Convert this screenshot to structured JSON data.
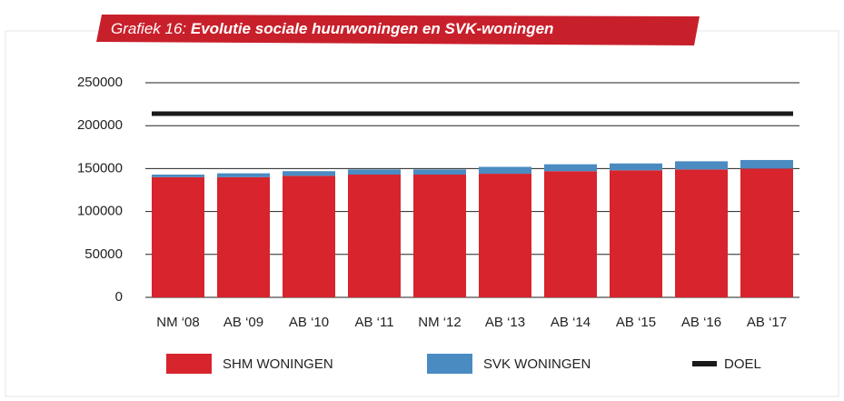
{
  "chart_data": {
    "type": "stacked-bar-line",
    "title_label": "Grafiek 16:",
    "title": "Evolutie sociale huurwoningen en SVK-woningen",
    "categories": [
      "NM ‘08",
      "AB ‘09",
      "AB ‘10",
      "AB ‘11",
      "NM ‘12",
      "AB ‘13",
      "AB ‘14",
      "AB ‘15",
      "AB ‘16",
      "AB ‘17"
    ],
    "series": [
      {
        "name": "SHM WONINGEN",
        "color": "#d7242d",
        "kind": "bar",
        "values": [
          140000,
          140000,
          141500,
          143000,
          143000,
          144000,
          147000,
          148000,
          149000,
          150000
        ]
      },
      {
        "name": "SVK WONINGEN",
        "color": "#4a8bc2",
        "kind": "bar",
        "values": [
          3000,
          4500,
          5500,
          6000,
          6000,
          8000,
          8000,
          8000,
          9500,
          10000
        ]
      },
      {
        "name": "DOEL",
        "color": "#1a1a1a",
        "kind": "line",
        "values": [
          214000,
          214000,
          214000,
          214000,
          214000,
          214000,
          214000,
          214000,
          214000,
          214000
        ]
      }
    ],
    "ylim": [
      0,
      250000
    ],
    "yticks": [
      0,
      50000,
      100000,
      150000,
      200000,
      250000
    ],
    "grid": true
  }
}
